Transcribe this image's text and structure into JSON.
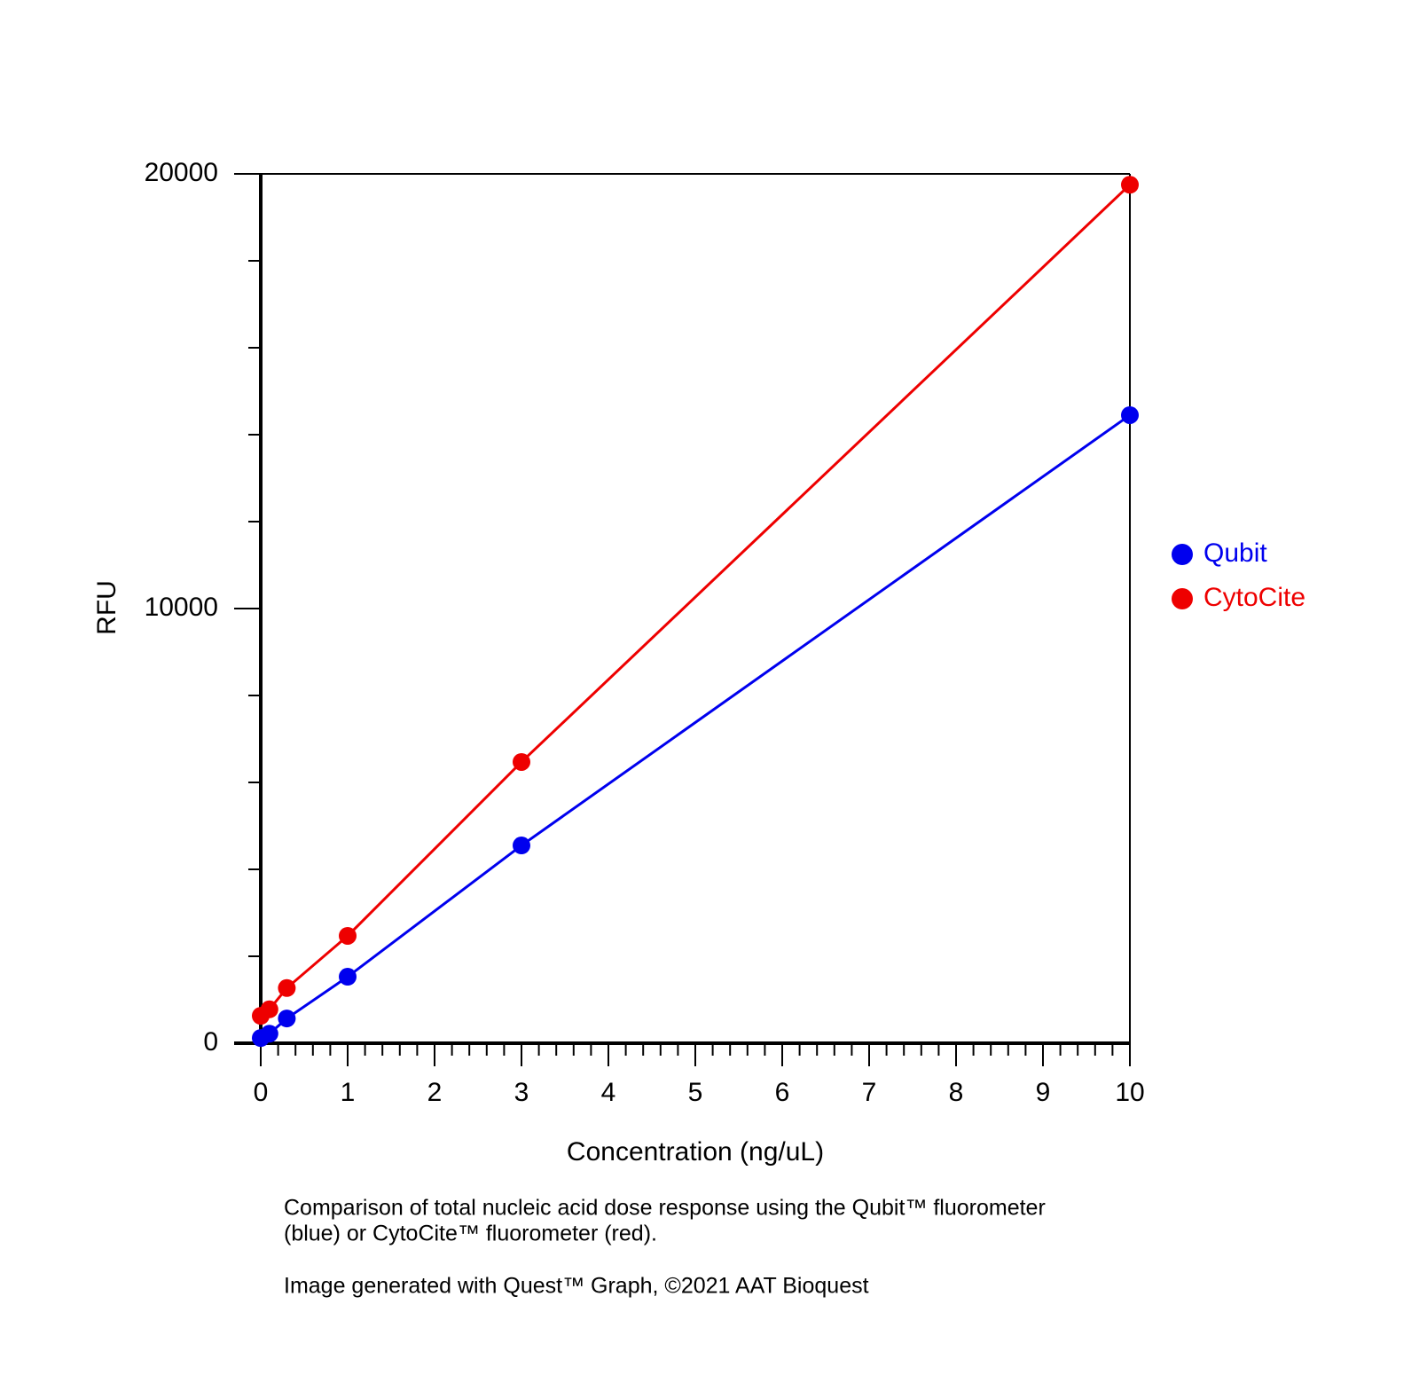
{
  "chart_data": {
    "type": "line",
    "xlabel": "Concentration (ng/uL)",
    "ylabel": "RFU",
    "series": [
      {
        "name": "Qubit",
        "color": "#0000ee",
        "x": [
          0,
          0.1,
          0.3,
          1,
          3,
          10
        ],
        "values": [
          120,
          220,
          570,
          1530,
          4550,
          14450
        ]
      },
      {
        "name": "CytoCite",
        "color": "#ee0000",
        "x": [
          0,
          0.1,
          0.3,
          1,
          3,
          10
        ],
        "values": [
          630,
          780,
          1270,
          2470,
          6470,
          19750
        ]
      }
    ],
    "xlim": [
      0,
      10
    ],
    "xticks": [
      0,
      1,
      2,
      3,
      4,
      5,
      6,
      7,
      8,
      9,
      10
    ],
    "xminorticks": [
      0.2,
      0.4,
      0.6,
      0.8,
      1.2,
      1.4,
      1.6,
      1.8,
      2.2,
      2.4,
      2.6,
      2.8,
      3.2,
      3.4,
      3.6,
      3.8,
      4.2,
      4.4,
      4.6,
      4.8,
      5.2,
      5.4,
      5.6,
      5.8,
      6.2,
      6.4,
      6.6,
      6.8,
      7.2,
      7.4,
      7.6,
      7.8,
      8.2,
      8.4,
      8.6,
      8.8,
      9.2,
      9.4,
      9.6,
      9.8
    ],
    "ylim": [
      0,
      20000
    ],
    "yticks": [
      0,
      10000,
      20000
    ],
    "yminorticks": [
      2000,
      4000,
      6000,
      8000,
      12000,
      14000,
      16000,
      18000
    ],
    "legend": "right",
    "caption": [
      "Comparison of total nucleic acid dose response using the Qubit™ fluorometer",
      "(blue) or CytoCite™ fluorometer (red).",
      "Image generated with Quest™ Graph, ©2021 AAT Bioquest"
    ]
  }
}
